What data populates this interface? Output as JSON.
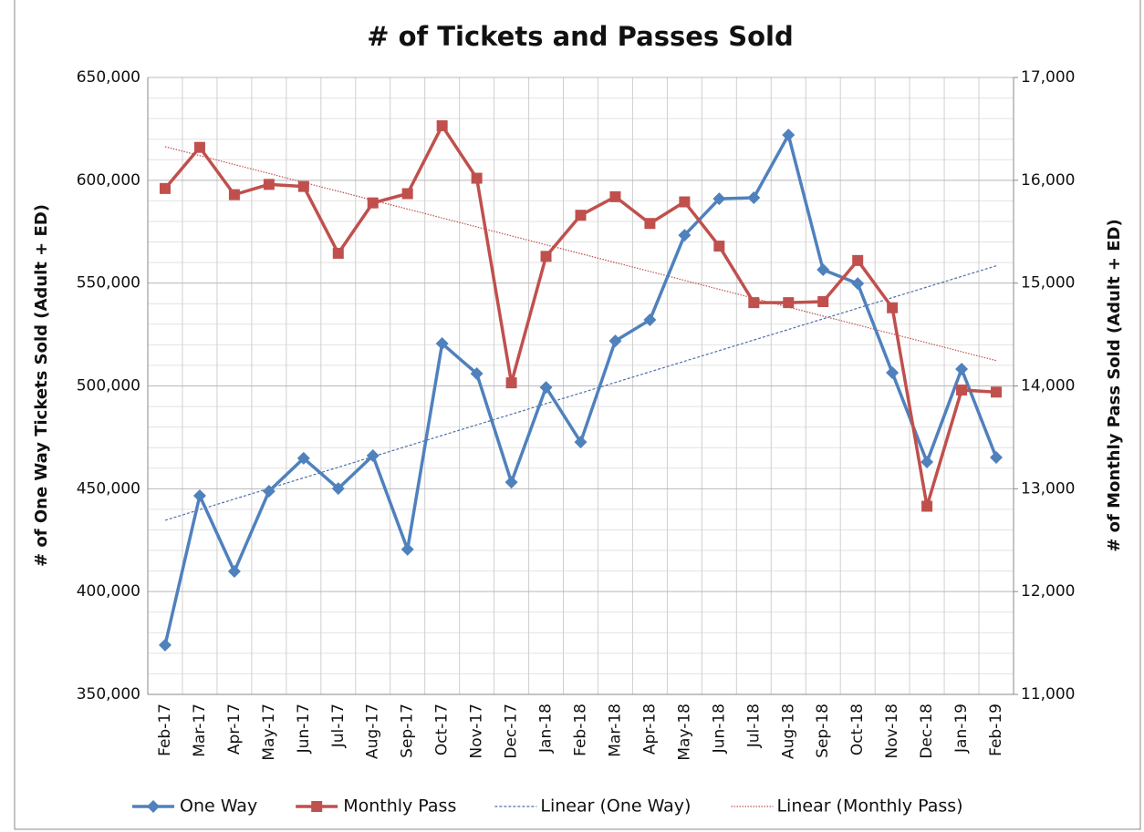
{
  "chart_data": {
    "type": "line",
    "title": "# of Tickets and Passes Sold",
    "y_label": "# of One Way Tickets Sold (Adult + ED)",
    "y2_label": "# of Monthly Pass Sold (Adult + ED)",
    "categories": [
      "Feb-17",
      "Mar-17",
      "Apr-17",
      "May-17",
      "Jun-17",
      "Jul-17",
      "Aug-17",
      "Sep-17",
      "Oct-17",
      "Nov-17",
      "Dec-17",
      "Jan-18",
      "Feb-18",
      "Mar-18",
      "Apr-18",
      "May-18",
      "Jun-18",
      "Jul-18",
      "Aug-18",
      "Sep-18",
      "Oct-18",
      "Nov-18",
      "Dec-18",
      "Jan-19",
      "Feb-19"
    ],
    "series": [
      {
        "name": "One Way",
        "color": "#4f81bd",
        "marker": "diamond",
        "values": [
          374000,
          446600,
          409800,
          448800,
          464800,
          450100,
          466100,
          420500,
          520600,
          506000,
          453200,
          499300,
          472700,
          521900,
          532100,
          573300,
          591000,
          591500,
          622000,
          556500,
          549800,
          506400,
          463000,
          508200,
          465200
        ]
      },
      {
        "name": "Monthly Pass",
        "color": "#c0504d",
        "marker": "square",
        "axis": "y2",
        "values": [
          15920,
          16320,
          15860,
          15960,
          15940,
          15290,
          15780,
          15870,
          16530,
          16020,
          14030,
          15260,
          15660,
          15840,
          15580,
          15790,
          15360,
          14810,
          14810,
          14820,
          15220,
          14760,
          12830,
          13960,
          13940
        ]
      }
    ],
    "trendlines": [
      {
        "name": "Linear (One Way)",
        "color": "#4f6fa8"
      },
      {
        "name": "Linear (Monthly Pass)",
        "color": "#c0504d"
      }
    ],
    "ylim": [
      350000,
      650000
    ],
    "yticks": [
      {
        "value": 350000,
        "label": "350,000"
      },
      {
        "value": 400000,
        "label": "400,000"
      },
      {
        "value": 450000,
        "label": "450,000"
      },
      {
        "value": 500000,
        "label": "500,000"
      },
      {
        "value": 550000,
        "label": "550,000"
      },
      {
        "value": 600000,
        "label": "600,000"
      },
      {
        "value": 650000,
        "label": "650,000"
      }
    ],
    "y2lim": [
      11000,
      17000
    ],
    "y2ticks": [
      {
        "value": 11000,
        "label": "11,000"
      },
      {
        "value": 12000,
        "label": "12,000"
      },
      {
        "value": 13000,
        "label": "13,000"
      },
      {
        "value": 14000,
        "label": "14,000"
      },
      {
        "value": 15000,
        "label": "15,000"
      },
      {
        "value": 16000,
        "label": "16,000"
      },
      {
        "value": 17000,
        "label": "17,000"
      }
    ],
    "grid": true,
    "legend": "bottom"
  }
}
